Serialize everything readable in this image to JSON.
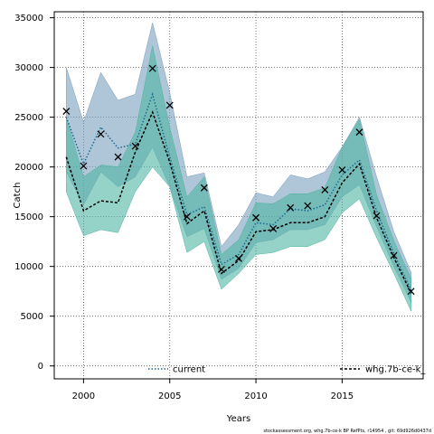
{
  "chart_data": {
    "type": "line",
    "xlabel": "Years",
    "ylabel": "Catch",
    "xlim": [
      1998.3,
      2019.7
    ],
    "ylim": [
      -1300,
      35600
    ],
    "x_ticks": [
      2000,
      2005,
      2010,
      2015
    ],
    "y_ticks": [
      0,
      5000,
      10000,
      15000,
      20000,
      25000,
      30000,
      35000
    ],
    "grid": true,
    "legend_placement": "bottom",
    "x": [
      1999,
      2000,
      2001,
      2002,
      2003,
      2004,
      2005,
      2006,
      2007,
      2008,
      2009,
      2010,
      2011,
      2012,
      2013,
      2014,
      2015,
      2016,
      2017,
      2018,
      2019
    ],
    "series": [
      {
        "name": "current",
        "color": "#1b6a92",
        "line_style": "dotted",
        "values": [
          25000,
          20300,
          24000,
          21900,
          22300,
          27300,
          21000,
          15200,
          16000,
          10200,
          11200,
          14400,
          14200,
          15800,
          15600,
          16200,
          19200,
          20700,
          15600,
          11300,
          7600
        ],
        "band_lower": [
          19500,
          16200,
          19500,
          18000,
          19000,
          22000,
          18000,
          13000,
          13800,
          8700,
          9800,
          12400,
          12700,
          13700,
          13700,
          14200,
          17000,
          18200,
          14000,
          10000,
          6400
        ],
        "band_upper": [
          30000,
          24500,
          29500,
          26700,
          27300,
          34500,
          27500,
          19000,
          19400,
          12000,
          14200,
          17400,
          17000,
          19200,
          18800,
          19500,
          22000,
          25000,
          19000,
          13500,
          9400
        ],
        "band_color": "#7a9fbe"
      },
      {
        "name": "whg.7b-ce-k_",
        "color": "#000000",
        "line_style": "dashed",
        "values": [
          21000,
          15600,
          16600,
          16400,
          21500,
          25500,
          20500,
          14300,
          15600,
          9300,
          10600,
          13500,
          13700,
          14400,
          14400,
          15000,
          18400,
          20300,
          14900,
          10900,
          7300
        ],
        "band_lower": [
          17500,
          13100,
          13700,
          13400,
          17500,
          20000,
          18000,
          11400,
          12500,
          7700,
          9300,
          11200,
          11400,
          12000,
          12000,
          12700,
          15400,
          16800,
          12900,
          9300,
          5500
        ],
        "band_upper": [
          25000,
          19000,
          20200,
          20000,
          23500,
          32200,
          24000,
          17000,
          19000,
          11200,
          12700,
          16400,
          16300,
          17300,
          17300,
          17900,
          22000,
          24800,
          17200,
          12600,
          8800
        ],
        "band_color": "#4fb6a4"
      }
    ],
    "observations": {
      "marker": "x",
      "x": [
        1999,
        2000,
        2001,
        2002,
        2003,
        2004,
        2005,
        2006,
        2007,
        2008,
        2009,
        2010,
        2011,
        2012,
        2013,
        2014,
        2015,
        2016,
        2017,
        2018,
        2019
      ],
      "values": [
        25600,
        20100,
        23300,
        21000,
        22100,
        29900,
        26200,
        15000,
        17900,
        9700,
        10800,
        14900,
        13800,
        15900,
        16100,
        17700,
        19700,
        23500,
        15100,
        11100,
        7500
      ]
    },
    "footnote": "stockassessment.org, whg.7b-ce-k  BP RefPts, r14954 , git: 69d926d0437d"
  }
}
